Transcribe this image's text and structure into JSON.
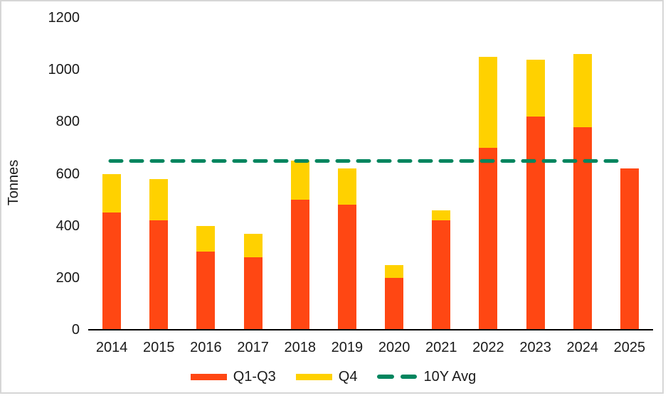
{
  "chart_data": {
    "type": "bar",
    "stacked": true,
    "ylabel": "Tonnes",
    "categories": [
      "2014",
      "2015",
      "2016",
      "2017",
      "2018",
      "2019",
      "2020",
      "2021",
      "2022",
      "2023",
      "2024",
      "2025"
    ],
    "series": [
      {
        "name": "Q1-Q3",
        "color": "#FF4713",
        "values": [
          450,
          420,
          300,
          280,
          500,
          480,
          200,
          420,
          700,
          820,
          780,
          620
        ]
      },
      {
        "name": "Q4",
        "color": "#FFD100",
        "values": [
          150,
          160,
          100,
          90,
          150,
          140,
          50,
          40,
          350,
          220,
          280,
          0
        ]
      }
    ],
    "reference_line": {
      "name": "10Y Avg",
      "value": 650,
      "color": "#00855E",
      "style": "dashed",
      "span_categories": [
        "2014",
        "2024"
      ]
    },
    "ylim": [
      0,
      1200
    ],
    "yticks": [
      0,
      200,
      400,
      600,
      800,
      1000,
      1200
    ],
    "grid": false,
    "legend_position": "bottom",
    "legend": [
      "Q1-Q3",
      "Q4",
      "10Y Avg"
    ]
  },
  "colors": {
    "axis": "#000000",
    "text": "#1a1a1a",
    "border": "#d6d6d6",
    "background": "#ffffff"
  }
}
